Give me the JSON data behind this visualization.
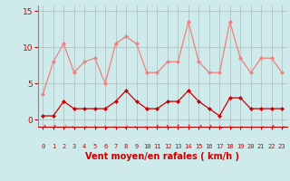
{
  "x": [
    0,
    1,
    2,
    3,
    4,
    5,
    6,
    7,
    8,
    9,
    10,
    11,
    12,
    13,
    14,
    15,
    16,
    17,
    18,
    19,
    20,
    21,
    22,
    23
  ],
  "rafales": [
    3.5,
    8.0,
    10.5,
    6.5,
    8.0,
    8.5,
    5.0,
    10.5,
    11.5,
    10.5,
    6.5,
    6.5,
    8.0,
    8.0,
    13.5,
    8.0,
    6.5,
    6.5,
    13.5,
    8.5,
    6.5,
    8.5,
    8.5,
    6.5
  ],
  "moyen": [
    0.5,
    0.5,
    2.5,
    1.5,
    1.5,
    1.5,
    1.5,
    2.5,
    4.0,
    2.5,
    1.5,
    1.5,
    2.5,
    2.5,
    4.0,
    2.5,
    1.5,
    0.5,
    3.0,
    3.0,
    1.5,
    1.5,
    1.5,
    1.5
  ],
  "rafales_color": "#f08080",
  "moyen_color": "#cc0000",
  "background_color": "#ceeaea",
  "grid_color": "#aabbbb",
  "ylabel_ticks": [
    0,
    5,
    10,
    15
  ],
  "ylim": [
    -1.0,
    15.8
  ],
  "xlim": [
    -0.5,
    23.5
  ],
  "xlabel": "Vent moyen/en rafales ( km/h )",
  "xlabel_color": "#cc0000",
  "tick_color": "#cc0000",
  "left_spine_color": "#888888",
  "marker": "D",
  "markersize": 2.0,
  "linewidth": 0.9
}
